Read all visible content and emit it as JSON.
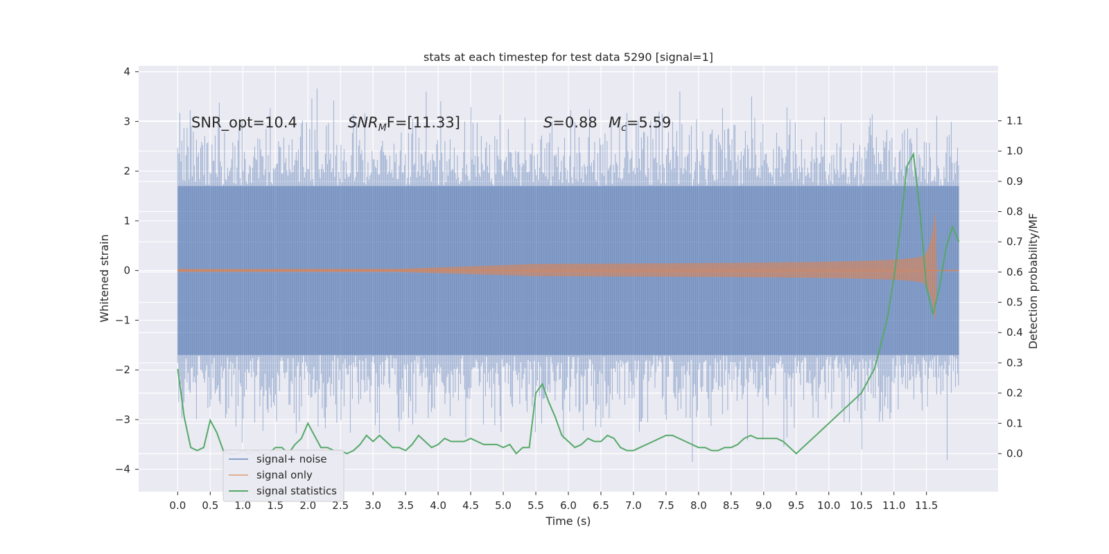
{
  "chart_data": {
    "type": "line",
    "title": "stats at each timestep for test data 5290 [signal=1]",
    "xlabel": "Time (s)",
    "ylabel_left": "Whitened strain",
    "ylabel_right": "Detection probability/MF",
    "xlim": [
      -0.6,
      12.6
    ],
    "ylim_left": [
      -4.45,
      4.12
    ],
    "ylim_right": [
      -0.126,
      1.282
    ],
    "x_ticks": [
      "0.0",
      "0.5",
      "1.0",
      "1.5",
      "2.0",
      "2.5",
      "3.0",
      "3.5",
      "4.0",
      "4.5",
      "5.0",
      "5.5",
      "6.0",
      "6.5",
      "7.0",
      "7.5",
      "8.0",
      "8.5",
      "9.0",
      "9.5",
      "10.0",
      "10.5",
      "11.0",
      "11.5"
    ],
    "y_ticks_left": [
      "4",
      "3",
      "2",
      "1",
      "0",
      "−1",
      "−2",
      "−3",
      "−4"
    ],
    "y_ticks_right": [
      "1.1",
      "1.0",
      "0.9",
      "0.8",
      "0.7",
      "0.6",
      "0.5",
      "0.4",
      "0.3",
      "0.2",
      "0.1",
      "0.0"
    ],
    "grid": true,
    "legend_position": "lower-left",
    "annotations": {
      "snr_opt": "SNR_opt=10.4",
      "snr_mf_main": "SNR",
      "snr_mf_sub": "M",
      "snr_mf_rest": "F=[11.33]",
      "s_label": "S",
      "s_value": "=0.88",
      "mc_label": "M",
      "mc_sub": "c",
      "mc_value": "=5.59"
    },
    "series": [
      {
        "name": "signal+ noise",
        "color": "#4c72b0",
        "x_range": [
          0.0,
          12.0
        ],
        "envelope_typical": 1.7,
        "envelope_max": 3.7,
        "envelope_min": -4.1
      },
      {
        "name": "signal only",
        "color": "#dd8452",
        "x_range": [
          0.0,
          12.0
        ],
        "merger_time": 11.65,
        "peak_amplitude": 1.3
      },
      {
        "name": "signal statistics",
        "color": "#55a868",
        "x": [
          0.0,
          0.1,
          0.2,
          0.3,
          0.4,
          0.5,
          0.6,
          0.7,
          0.8,
          0.9,
          1.0,
          1.1,
          1.2,
          1.3,
          1.4,
          1.5,
          1.6,
          1.7,
          1.8,
          1.9,
          2.0,
          2.1,
          2.2,
          2.3,
          2.4,
          2.5,
          2.6,
          2.7,
          2.8,
          2.9,
          3.0,
          3.1,
          3.2,
          3.3,
          3.4,
          3.5,
          3.6,
          3.7,
          3.8,
          3.9,
          4.0,
          4.1,
          4.2,
          4.3,
          4.4,
          4.5,
          4.6,
          4.7,
          4.8,
          4.9,
          5.0,
          5.1,
          5.2,
          5.3,
          5.4,
          5.5,
          5.6,
          5.7,
          5.8,
          5.9,
          6.0,
          6.1,
          6.2,
          6.3,
          6.4,
          6.5,
          6.6,
          6.7,
          6.8,
          6.9,
          7.0,
          7.1,
          7.2,
          7.3,
          7.4,
          7.5,
          7.6,
          7.7,
          7.8,
          7.9,
          8.0,
          8.1,
          8.2,
          8.3,
          8.4,
          8.5,
          8.6,
          8.7,
          8.8,
          8.9,
          9.0,
          9.1,
          9.2,
          9.3,
          9.4,
          9.5,
          9.6,
          9.7,
          9.8,
          9.9,
          10.0,
          10.1,
          10.2,
          10.3,
          10.4,
          10.5,
          10.6,
          10.7,
          10.8,
          10.9,
          11.0,
          11.1,
          11.2,
          11.3,
          11.4,
          11.5,
          11.6,
          11.7,
          11.8,
          11.9,
          12.0
        ],
        "values": [
          0.28,
          0.12,
          0.02,
          0.01,
          0.02,
          0.11,
          0.07,
          0.01,
          0.0,
          0.0,
          0.01,
          0.0,
          0.01,
          0.0,
          0.0,
          0.02,
          0.02,
          0.0,
          0.03,
          0.05,
          0.1,
          0.06,
          0.02,
          0.02,
          0.01,
          0.01,
          0.0,
          0.01,
          0.03,
          0.06,
          0.04,
          0.06,
          0.04,
          0.02,
          0.02,
          0.01,
          0.03,
          0.06,
          0.04,
          0.02,
          0.03,
          0.05,
          0.04,
          0.04,
          0.04,
          0.05,
          0.04,
          0.03,
          0.03,
          0.03,
          0.02,
          0.03,
          0.0,
          0.02,
          0.02,
          0.2,
          0.23,
          0.17,
          0.12,
          0.06,
          0.04,
          0.02,
          0.03,
          0.05,
          0.04,
          0.04,
          0.06,
          0.05,
          0.02,
          0.01,
          0.01,
          0.02,
          0.03,
          0.04,
          0.05,
          0.06,
          0.06,
          0.05,
          0.04,
          0.03,
          0.02,
          0.02,
          0.01,
          0.01,
          0.02,
          0.02,
          0.03,
          0.05,
          0.06,
          0.05,
          0.05,
          0.05,
          0.05,
          0.04,
          0.02,
          0.0,
          0.02,
          0.04,
          0.06,
          0.08,
          0.1,
          0.12,
          0.14,
          0.16,
          0.18,
          0.2,
          0.24,
          0.28,
          0.36,
          0.45,
          0.58,
          0.75,
          0.95,
          0.99,
          0.8,
          0.55,
          0.46,
          0.55,
          0.68,
          0.75,
          0.7
        ]
      }
    ]
  }
}
